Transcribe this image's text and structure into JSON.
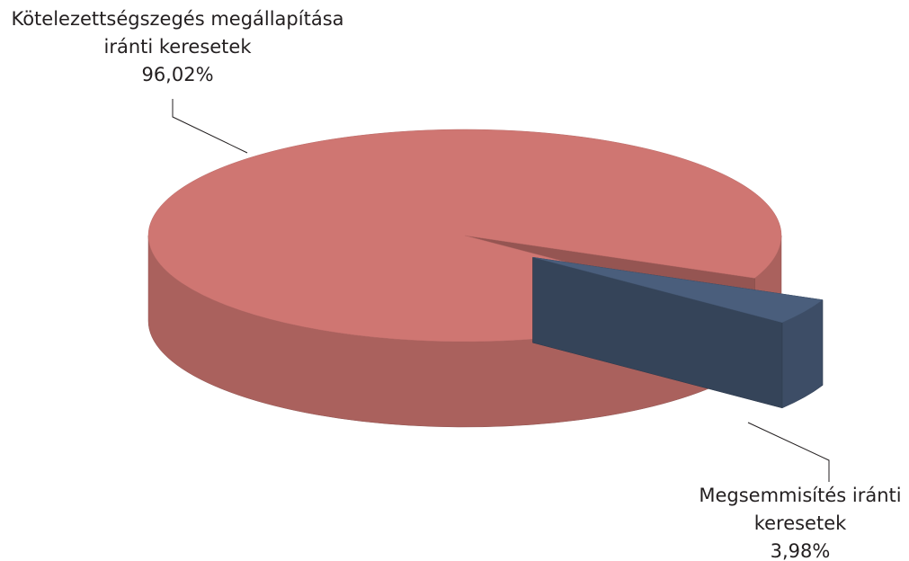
{
  "chart_data": {
    "type": "pie3d",
    "categories": [
      "Kötelezettségszegés megállapítása iránti keresetek",
      "Megsemmisítés iránti keresetek"
    ],
    "values": [
      96.02,
      3.98
    ],
    "value_labels": [
      "96,02%",
      "3,98%"
    ],
    "colors": [
      "#cf7672",
      "#4a5e7c"
    ]
  }
}
